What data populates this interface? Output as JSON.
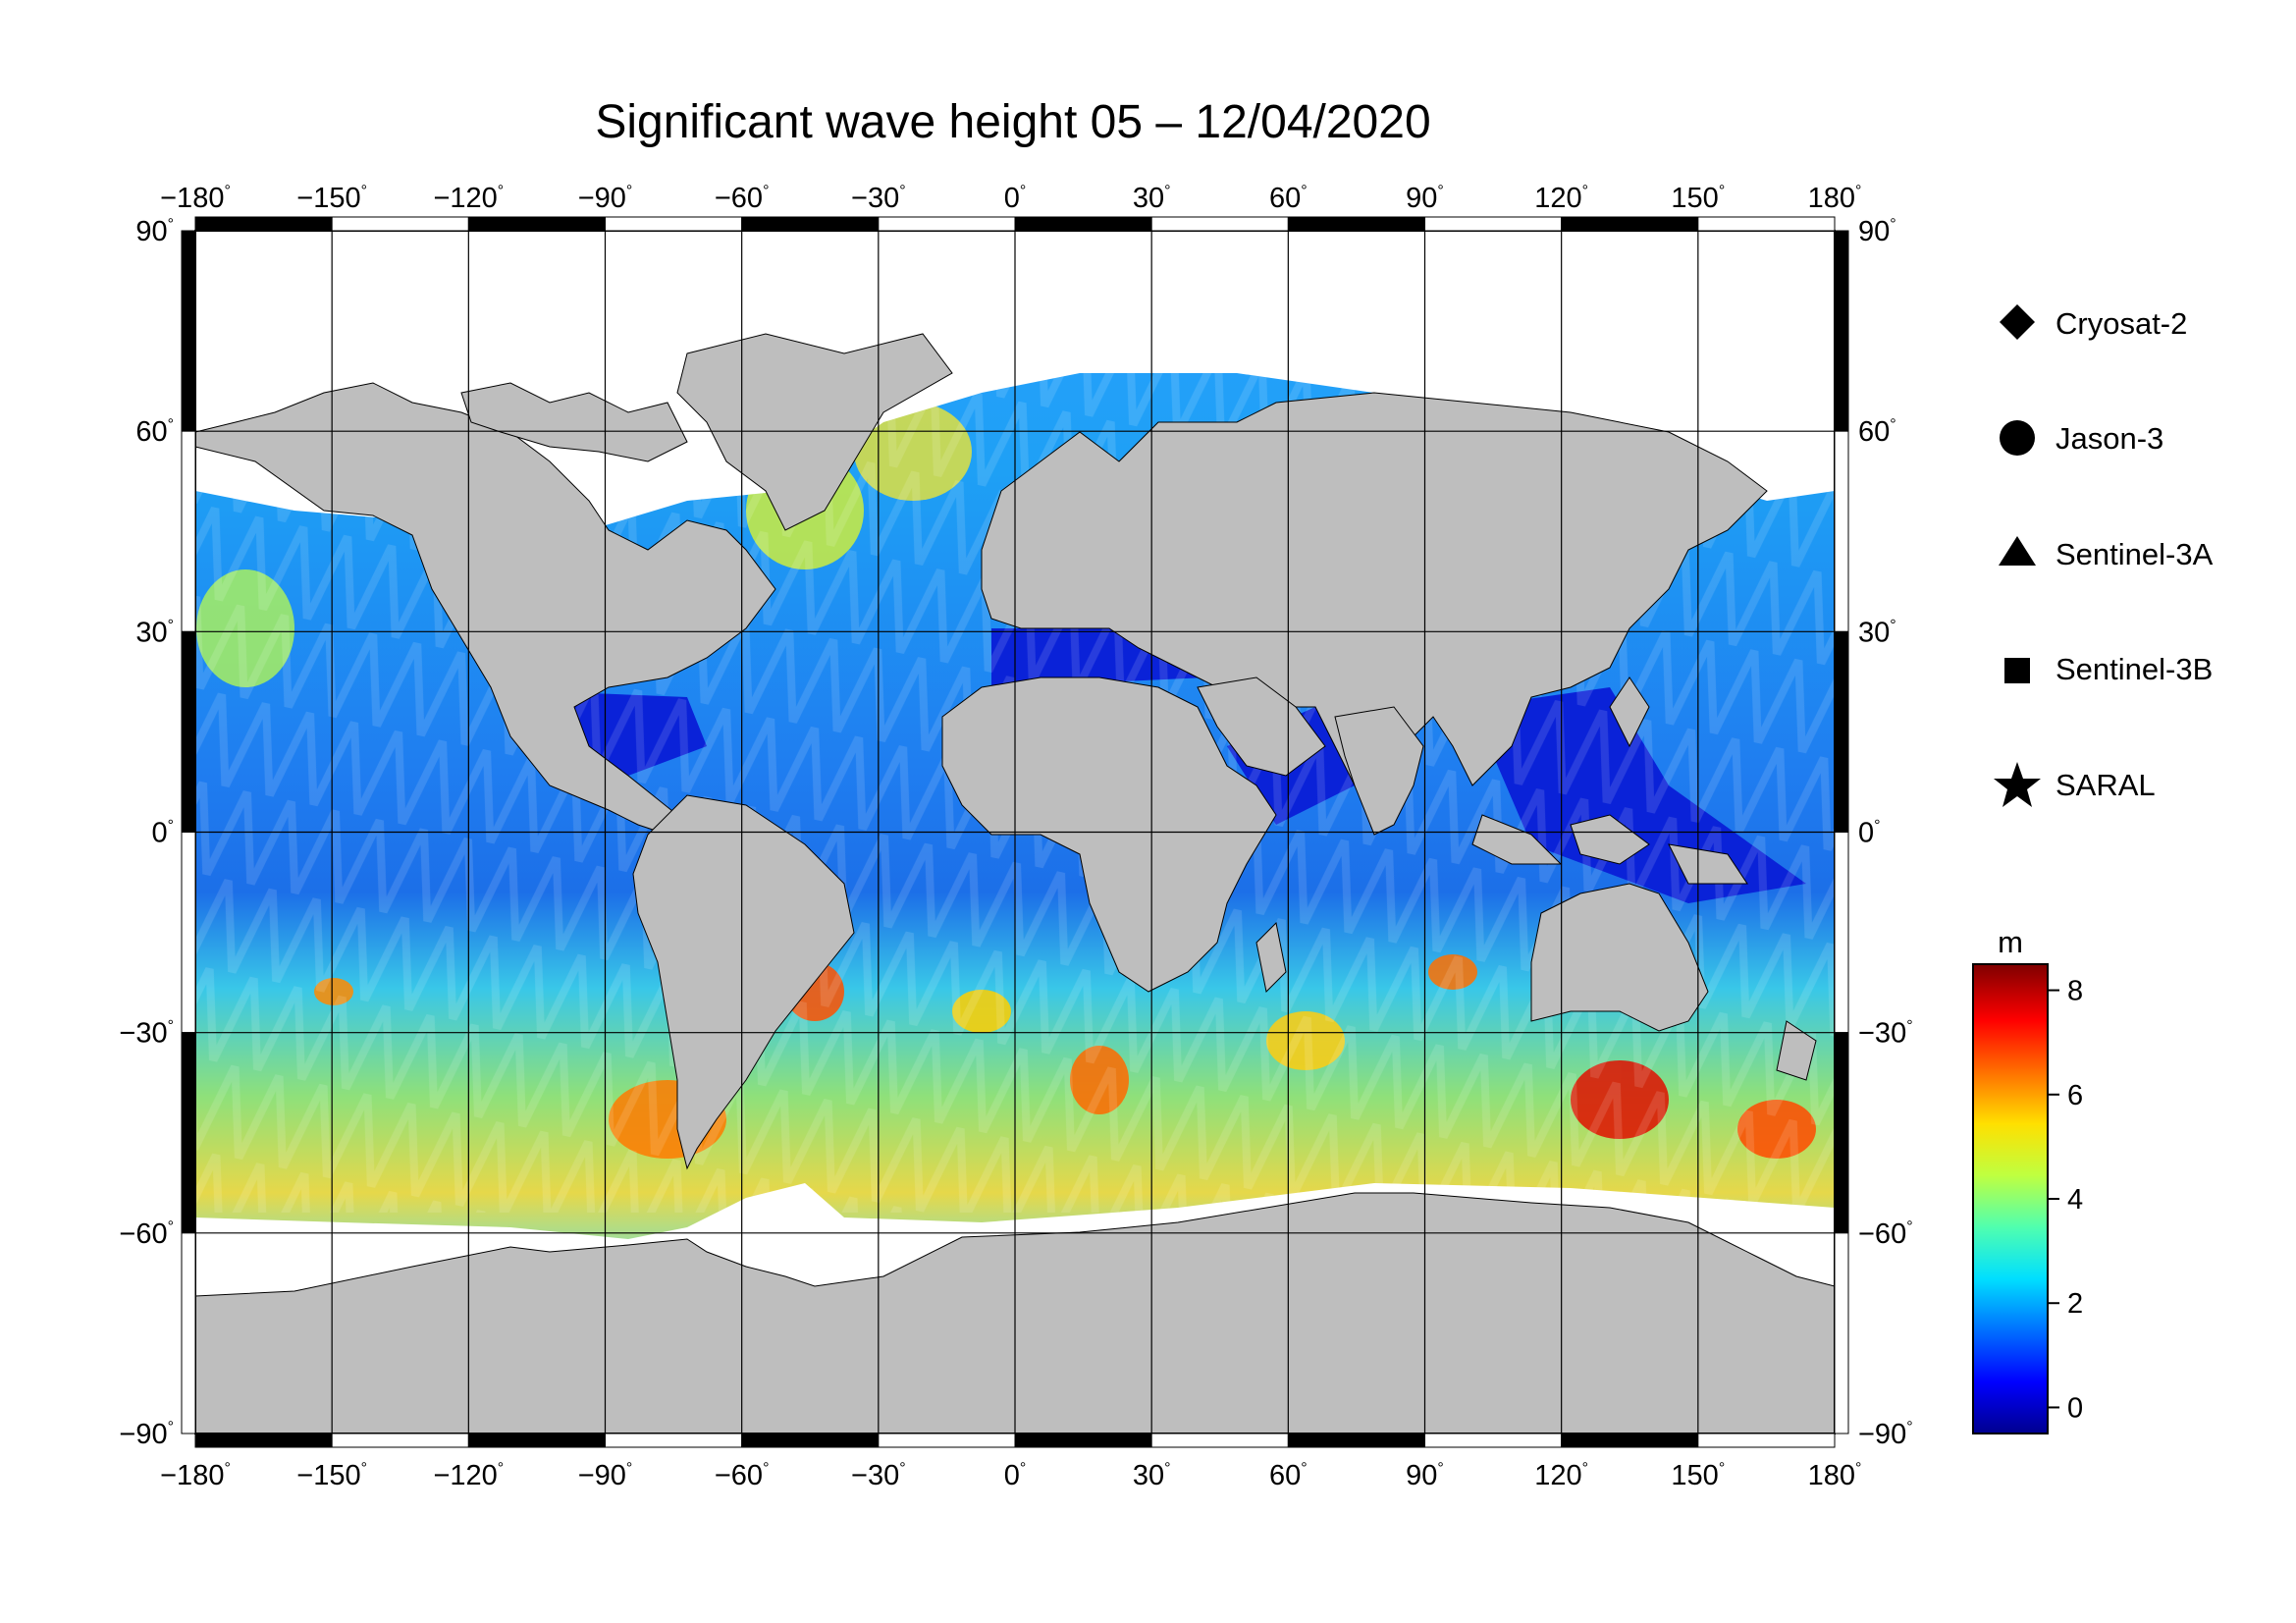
{
  "title": "Significant wave height 05 – 12/04/2020",
  "map": {
    "lon_ticks": [
      "−180",
      "−150",
      "−120",
      "−90",
      "−60",
      "−30",
      "0",
      "30",
      "60",
      "90",
      "120",
      "150",
      "180"
    ],
    "lat_ticks": [
      "90",
      "60",
      "30",
      "0",
      "−30",
      "−60",
      "−90"
    ],
    "degree_symbol": "°",
    "land_color": "#bebebe",
    "ice_color": "#ffffff",
    "frame_color": "#000000"
  },
  "legend": {
    "items": [
      {
        "label": "Cryosat-2",
        "symbol": "diamond"
      },
      {
        "label": "Jason-3",
        "symbol": "circle"
      },
      {
        "label": "Sentinel-3A",
        "symbol": "triangle"
      },
      {
        "label": "Sentinel-3B",
        "symbol": "square"
      },
      {
        "label": "SARAL",
        "symbol": "star"
      }
    ]
  },
  "colorbar": {
    "unit": "m",
    "ticks": [
      "8",
      "6",
      "4",
      "2",
      "0"
    ],
    "range": [
      -0.5,
      8.5
    ],
    "colors": [
      "#00008f",
      "#0000ff",
      "#0070ff",
      "#00dfff",
      "#50ffaf",
      "#bfff40",
      "#ffe000",
      "#ff7000",
      "#ff0000",
      "#7f0000"
    ]
  }
}
